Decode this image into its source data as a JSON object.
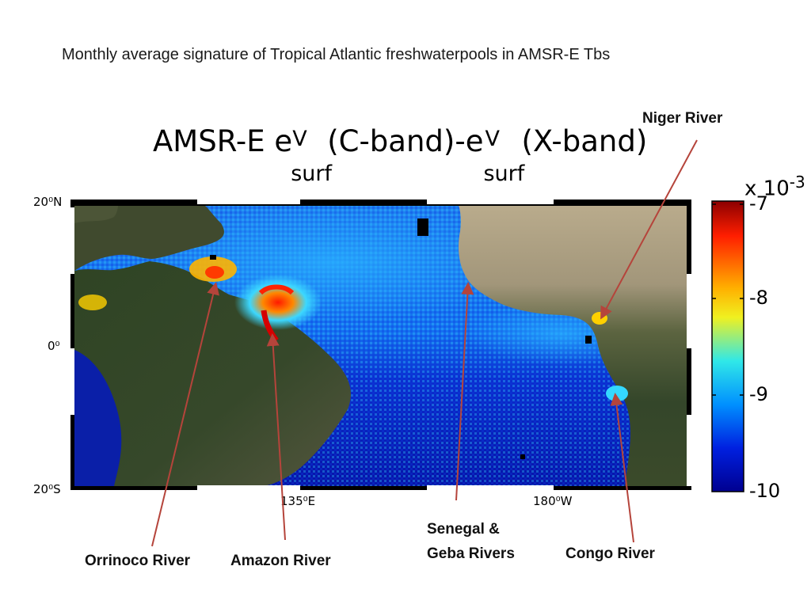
{
  "slide_title": "Monthly average signature of Tropical Atlantic freshwaterpools in AMSR-E Tbs",
  "plot_title": {
    "prefix": "AMSR-E e",
    "sup1": "V",
    "sub1": "surf",
    "middle": "(C-band)-e",
    "sup2": "V",
    "sub2": "surf",
    "suffix": "(X-band)"
  },
  "axes": {
    "y_ticks": [
      "20⁰N",
      "0⁰",
      "20⁰S"
    ],
    "x_ticks": [
      "135⁰E",
      "180⁰W"
    ]
  },
  "colorbar": {
    "multiplier_base": "x 10",
    "multiplier_exp": "-3",
    "ticks": [
      "-7",
      "-8",
      "-9",
      "-10"
    ],
    "colors": [
      "#a00000",
      "#ff2a00",
      "#ffb000",
      "#e8f020",
      "#30e0e0",
      "#0090ff",
      "#0020d0",
      "#000090"
    ]
  },
  "rivers": {
    "niger": "Niger River",
    "orrinoco": "Orrinoco River",
    "amazon": "Amazon River",
    "senegal_line1": "Senegal &",
    "senegal_line2": "Geba Rivers",
    "congo": "Congo River"
  },
  "colors": {
    "arrow": "#b5443b",
    "ocean_deep": "#0a1fb8",
    "land": "#3d4a2c",
    "desert": "#a89a7c"
  }
}
